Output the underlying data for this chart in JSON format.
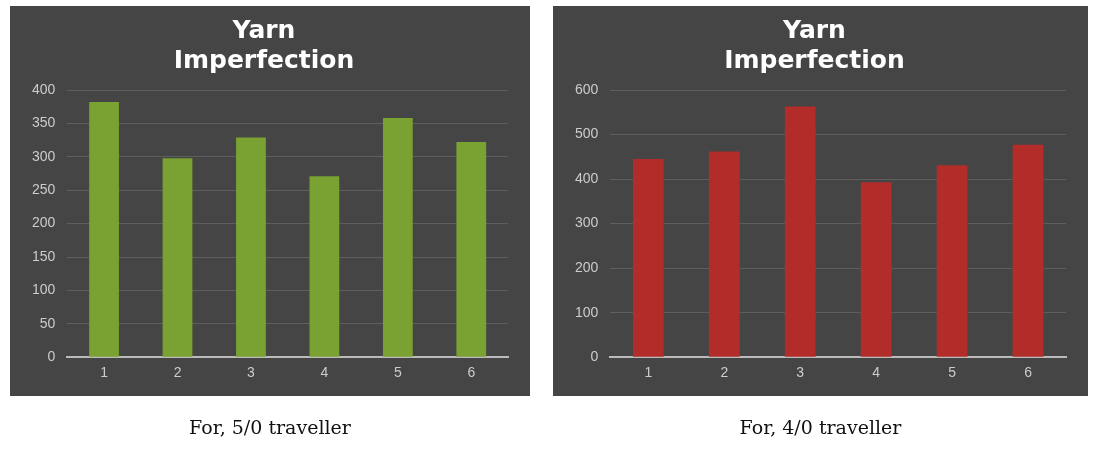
{
  "chart_data": [
    {
      "type": "bar",
      "title": "Yarn Imperfection",
      "categories": [
        "1",
        "2",
        "3",
        "4",
        "5",
        "6"
      ],
      "values": [
        382,
        298,
        329,
        271,
        358,
        322
      ],
      "color": "#7aa232",
      "ylim": [
        0,
        400
      ],
      "yticks": [
        0,
        50,
        100,
        150,
        200,
        250,
        300,
        350,
        400
      ],
      "grid": "y",
      "annotations": [
        "For, 5/0 traveller"
      ]
    },
    {
      "type": "bar",
      "title": "Yarn Imperfection",
      "categories": [
        "1",
        "2",
        "3",
        "4",
        "5",
        "6"
      ],
      "values": [
        445,
        462,
        563,
        393,
        431,
        477
      ],
      "color": "#b22c2a",
      "ylim": [
        0,
        600
      ],
      "yticks": [
        0,
        100,
        200,
        300,
        400,
        500,
        600
      ],
      "grid": "y",
      "annotations": [
        "For, 4/0 traveller"
      ]
    }
  ]
}
